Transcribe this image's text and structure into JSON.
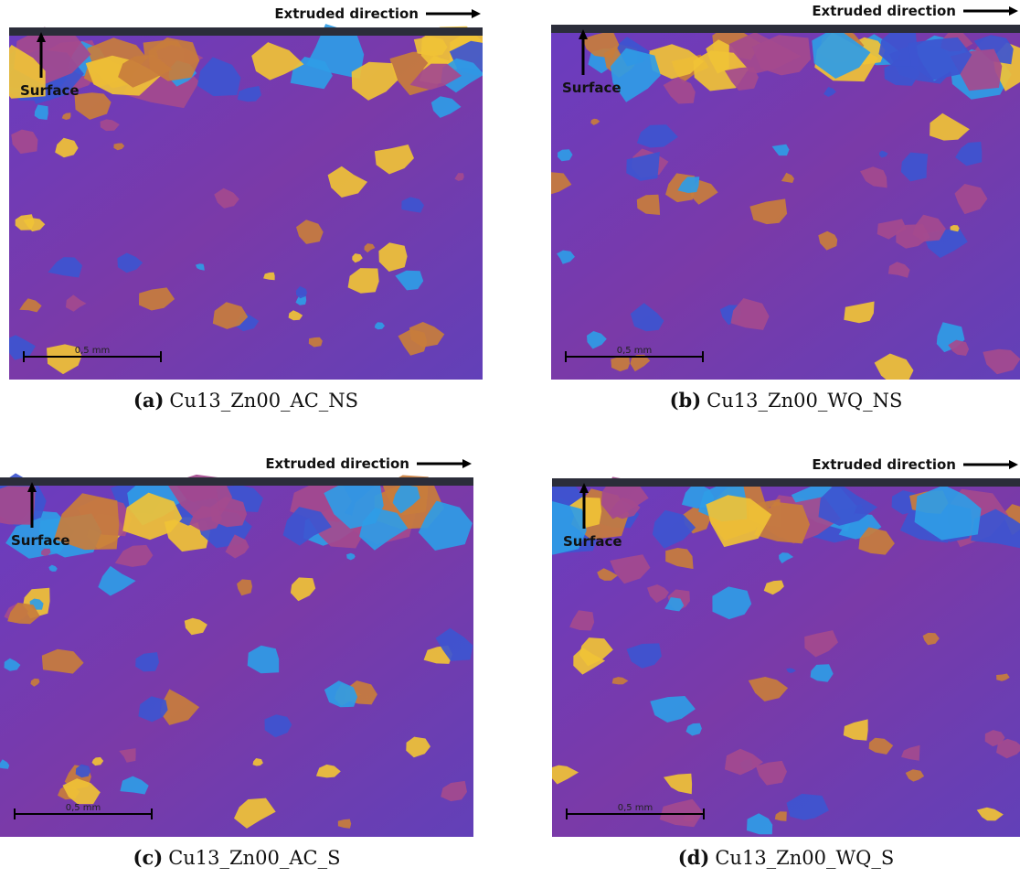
{
  "figure": {
    "panels": [
      {
        "label": "(a)",
        "caption": "Cu13_Zn00_AC_NS",
        "direction": "Extruded direction",
        "surface": "Surface",
        "scale": "0,5 mm"
      },
      {
        "label": "(b)",
        "caption": "Cu13_Zn00_WQ_NS",
        "direction": "Extruded direction",
        "surface": "Surface",
        "scale": "0,5 mm"
      },
      {
        "label": "(c)",
        "caption": "Cu13_Zn00_AC_S",
        "direction": "Extruded direction",
        "surface": "Surface",
        "scale": "0,5 mm"
      },
      {
        "label": "(d)",
        "caption": "Cu13_Zn00_WQ_S",
        "direction": "Extruded direction",
        "surface": "Surface",
        "scale": "0,5 mm"
      }
    ]
  }
}
